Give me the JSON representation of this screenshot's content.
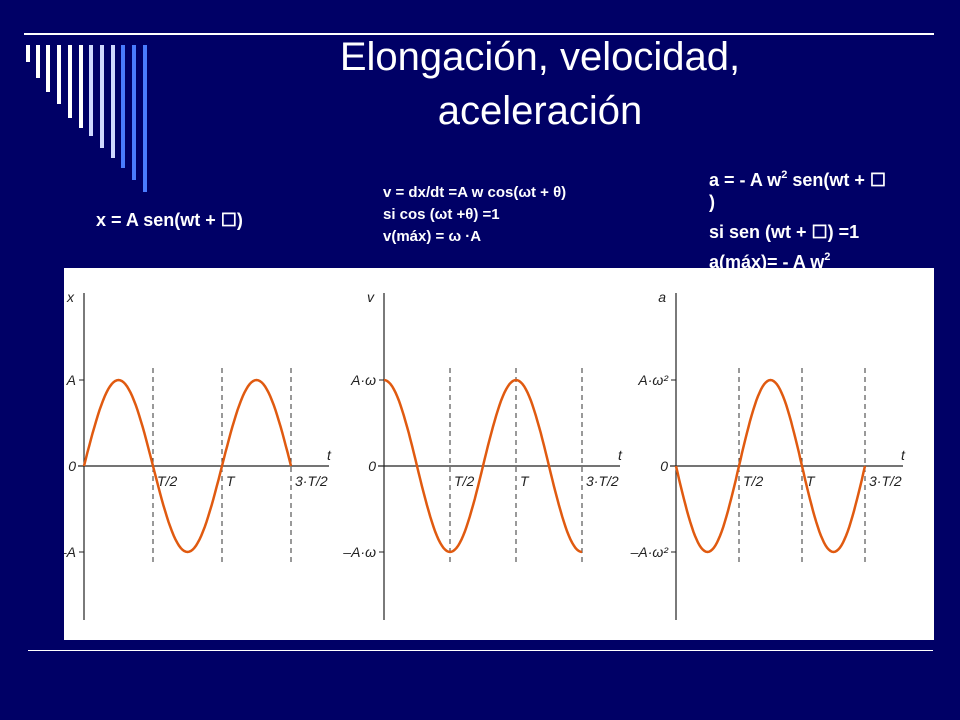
{
  "title": {
    "line1": "Elongación, velocidad,",
    "line2": "aceleración"
  },
  "equations": {
    "x": {
      "line1": "x = A sen(wt + ☐)"
    },
    "v": {
      "line1": "v = dx/dt =A w cos(ωt + θ)",
      "line2": "si cos (ωt +θ) =1",
      "line3": "v(máx) = ω ·A"
    },
    "a": {
      "line1_pre": "a = - A w",
      "line1_sup": "2",
      "line1_post": " sen(wt + ☐",
      "line2": ")",
      "line3": "si   sen (wt + ☐) =1",
      "line4_pre": "a(máx)= - A w",
      "line4_sup": "2"
    }
  },
  "graphs": [
    {
      "axis_label": "x",
      "t_label": "t",
      "amp_pos": "A",
      "amp_neg": "–A",
      "zero": "0",
      "ticks": [
        "T/2",
        "T",
        "3·T/2"
      ],
      "function": "sin"
    },
    {
      "axis_label": "v",
      "t_label": "t",
      "amp_pos": "A·ω",
      "amp_neg": "–A·ω",
      "zero": "0",
      "ticks": [
        "T/2",
        "T",
        "3·T/2"
      ],
      "function": "cos"
    },
    {
      "axis_label": "a",
      "t_label": "t",
      "amp_pos": "A·ω²",
      "amp_neg": "–A·ω²",
      "zero": "0",
      "ticks": [
        "T/2",
        "T",
        "3·T/2"
      ],
      "function": "-sin"
    }
  ],
  "colors": {
    "background": "#000066",
    "curve": "#e05a10",
    "text": "#ffffff",
    "decor_stripes": "#ffffff"
  }
}
